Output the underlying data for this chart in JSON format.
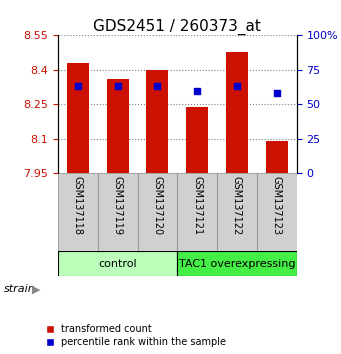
{
  "title": "GDS2451 / 260373_at",
  "samples": [
    "GSM137118",
    "GSM137119",
    "GSM137120",
    "GSM137121",
    "GSM137122",
    "GSM137123"
  ],
  "bar_values": [
    8.43,
    8.36,
    8.4,
    8.24,
    8.48,
    8.09
  ],
  "bar_bottom": 7.95,
  "percentile_values": [
    8.33,
    8.33,
    8.33,
    8.31,
    8.33,
    8.3
  ],
  "ylim_left": [
    7.95,
    8.55
  ],
  "yticks_left": [
    7.95,
    8.1,
    8.25,
    8.4,
    8.55
  ],
  "ytick_labels_left": [
    "7.95",
    "8.1",
    "8.25",
    "8.4",
    "8.55"
  ],
  "ylim_right": [
    0,
    100
  ],
  "yticks_right": [
    0,
    25,
    50,
    75,
    100
  ],
  "ytick_labels_right": [
    "0",
    "25",
    "50",
    "75",
    "100%"
  ],
  "bar_color": "#cc1100",
  "square_color": "#0000cc",
  "groups": [
    {
      "label": "control",
      "indices": [
        0,
        1,
        2
      ],
      "color": "#bbffbb"
    },
    {
      "label": "TAC1 overexpressing",
      "indices": [
        3,
        4,
        5
      ],
      "color": "#44ee44"
    }
  ],
  "strain_label": "strain",
  "bar_width": 0.55,
  "legend_red_label": "transformed count",
  "legend_blue_label": "percentile rank within the sample",
  "left_tick_color": "#cc1100",
  "right_tick_color": "#0000cc",
  "title_fontsize": 11,
  "tick_fontsize": 8,
  "sample_fontsize": 7,
  "group_fontsize": 8,
  "legend_fontsize": 7
}
